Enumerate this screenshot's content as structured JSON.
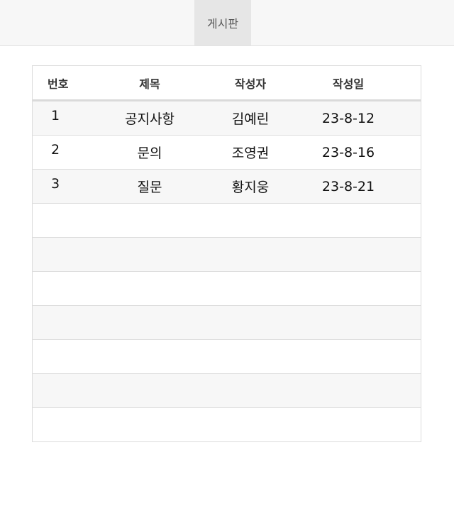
{
  "nav": {
    "tab_label": "게시판"
  },
  "board": {
    "headers": {
      "no": "번호",
      "title": "제목",
      "writer": "작성자",
      "date": "작성일"
    },
    "rows": [
      {
        "no": "1",
        "title": "공지사항",
        "writer": "김예린",
        "date": "23-8-12"
      },
      {
        "no": "2",
        "title": "문의",
        "writer": "조영권",
        "date": "23-8-16"
      },
      {
        "no": "3",
        "title": "질문",
        "writer": "황지웅",
        "date": "23-8-21"
      },
      {
        "no": "",
        "title": "",
        "writer": "",
        "date": ""
      },
      {
        "no": "",
        "title": "",
        "writer": "",
        "date": ""
      },
      {
        "no": "",
        "title": "",
        "writer": "",
        "date": ""
      },
      {
        "no": "",
        "title": "",
        "writer": "",
        "date": ""
      },
      {
        "no": "",
        "title": "",
        "writer": "",
        "date": ""
      },
      {
        "no": "",
        "title": "",
        "writer": "",
        "date": ""
      },
      {
        "no": "",
        "title": "",
        "writer": "",
        "date": ""
      }
    ]
  }
}
